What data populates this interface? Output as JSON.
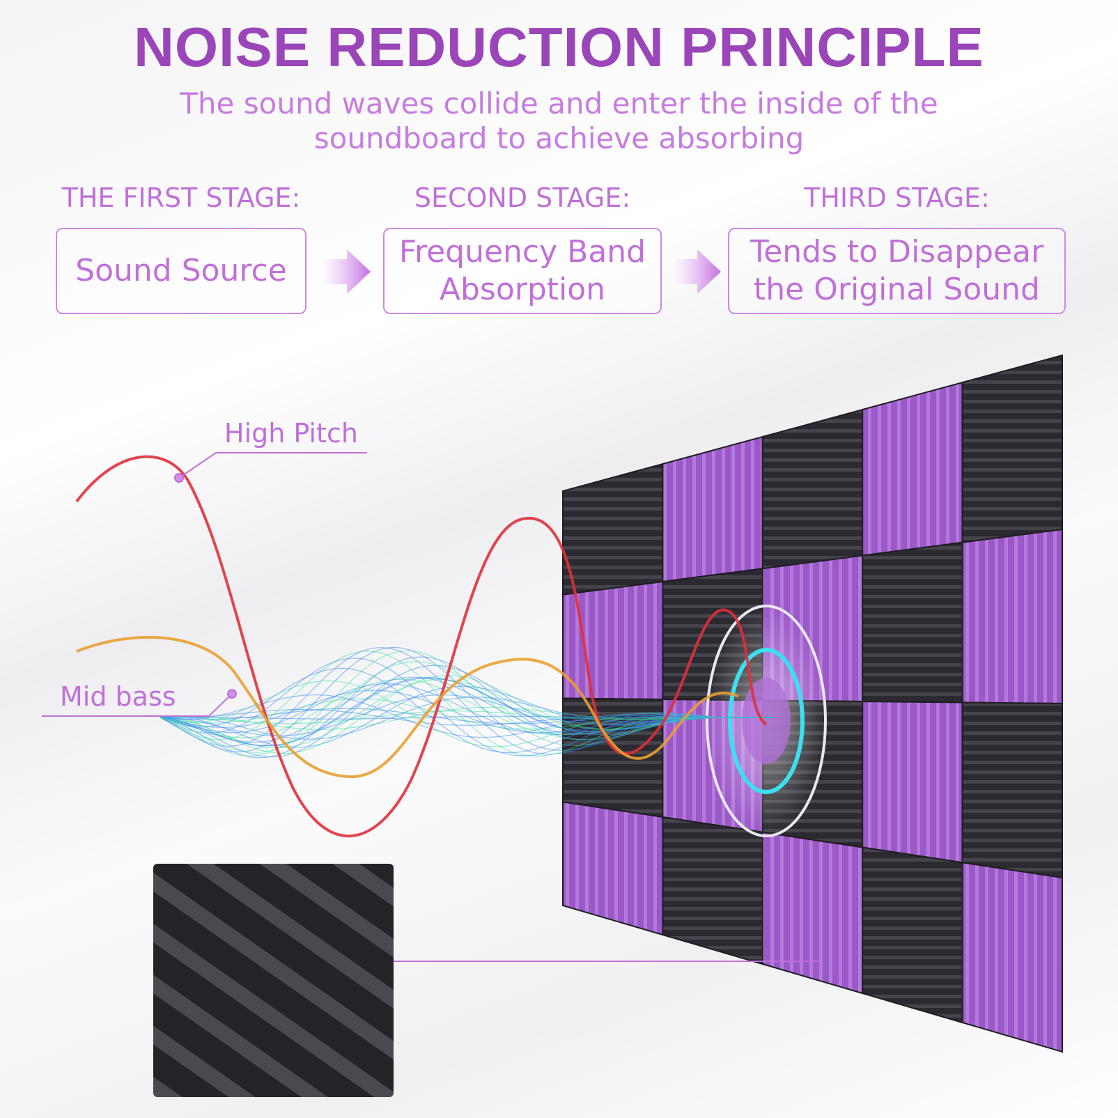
{
  "title": "NOISE REDUCTION PRINCIPLE",
  "subtitle": {
    "line1": "The sound waves collide and enter the inside of the",
    "line2": "soundboard to achieve absorbing"
  },
  "stages": [
    {
      "label": "THE FIRST STAGE:",
      "box": "Sound Source"
    },
    {
      "label": "SECOND STAGE:",
      "box_line1": "Frequency Band",
      "box_line2": "Absorption"
    },
    {
      "label": "THIRD STAGE:",
      "box_line1": "Tends to Disappear",
      "box_line2": "the Original Sound"
    }
  ],
  "callouts": {
    "high": "High Pitch",
    "mid": "Mid bass"
  },
  "colors": {
    "accent": "#9a45b8",
    "text": "#c070d8",
    "panel_black": "#2b2a30",
    "panel_purple": "#9b58c9",
    "high_wave": "#e0303a",
    "mid_wave": "#e8a030",
    "mesh": "#3a8ef0"
  }
}
